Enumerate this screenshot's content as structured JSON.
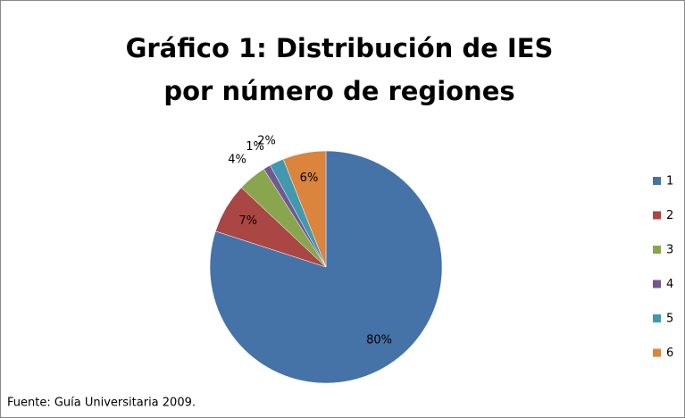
{
  "chart_data": {
    "type": "pie",
    "title": "Gráfico 1: Distribución de IES por número de regiones",
    "source": "Fuente: Guía Universitaria 2009.",
    "categories": [
      "1",
      "2",
      "3",
      "4",
      "5",
      "6"
    ],
    "values": [
      80,
      7,
      4,
      1,
      2,
      6
    ],
    "value_labels": [
      "80%",
      "7%",
      "4%",
      "1%",
      "2%",
      "6%"
    ],
    "colors": [
      "#4572a7",
      "#aa4643",
      "#89a54e",
      "#71588f",
      "#4198af",
      "#db843d"
    ],
    "legend": "right"
  }
}
